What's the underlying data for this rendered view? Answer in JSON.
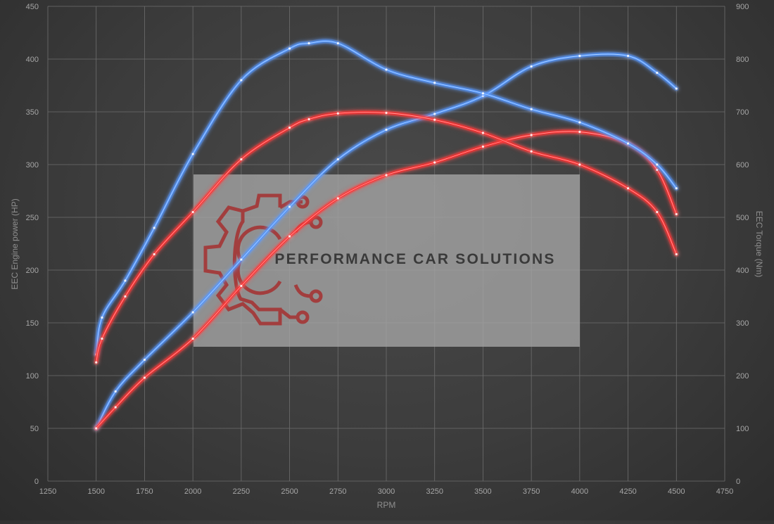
{
  "chart_data": {
    "type": "line",
    "xlabel": "RPM",
    "ylabel_left": "EEC Engine power (HP)",
    "ylabel_right": "EEC Torque (Nm)",
    "xlim": [
      1250,
      4750
    ],
    "ylim_left": [
      0,
      450
    ],
    "ylim_right": [
      0,
      900
    ],
    "x_ticks": [
      1250,
      1500,
      1750,
      2000,
      2250,
      2500,
      2750,
      3000,
      3250,
      3500,
      3750,
      4000,
      4250,
      4500,
      4750
    ],
    "y_left_ticks": [
      0,
      50,
      100,
      150,
      200,
      250,
      300,
      350,
      400,
      450
    ],
    "y_right_ticks": [
      0,
      100,
      200,
      300,
      400,
      500,
      600,
      700,
      800,
      900
    ],
    "grid": true,
    "series": [
      {
        "color": "#4f95ff",
        "axis": "left",
        "x": [
          1500,
          1600,
          1750,
          2000,
          2250,
          2500,
          2750,
          3000,
          3250,
          3500,
          3750,
          4000,
          4250,
          4400,
          4500
        ],
        "values": [
          50,
          85,
          115,
          160,
          210,
          260,
          305,
          333,
          348,
          365,
          393,
          403,
          403,
          387,
          372
        ]
      },
      {
        "color": "#ff2a2a",
        "axis": "left",
        "x": [
          1500,
          1600,
          1750,
          2000,
          2250,
          2500,
          2750,
          3000,
          3250,
          3500,
          3750,
          4000,
          4250,
          4400,
          4500
        ],
        "values": [
          50,
          70,
          98,
          135,
          185,
          232,
          268,
          290,
          302,
          317,
          328,
          331,
          320,
          295,
          253
        ]
      },
      {
        "color": "#4f95ff",
        "axis": "right",
        "x": [
          1500,
          1530,
          1650,
          1800,
          2000,
          2250,
          2500,
          2600,
          2750,
          3000,
          3250,
          3500,
          3750,
          4000,
          4250,
          4400,
          4500
        ],
        "values": [
          240,
          310,
          380,
          480,
          620,
          760,
          820,
          830,
          830,
          780,
          755,
          735,
          705,
          680,
          640,
          600,
          555
        ]
      },
      {
        "color": "#ff2a2a",
        "axis": "right",
        "x": [
          1500,
          1530,
          1650,
          1800,
          2000,
          2250,
          2500,
          2600,
          2750,
          3000,
          3250,
          3500,
          3750,
          4000,
          4250,
          4400,
          4500
        ],
        "values": [
          225,
          270,
          350,
          430,
          510,
          610,
          670,
          686,
          697,
          698,
          685,
          660,
          625,
          600,
          555,
          510,
          430
        ]
      }
    ]
  },
  "watermark": {
    "text": "PERFORMANCE CAR SOLUTIONS",
    "logo_icon": "gear-circuit-icon",
    "logo_color": "#a33a3a"
  }
}
